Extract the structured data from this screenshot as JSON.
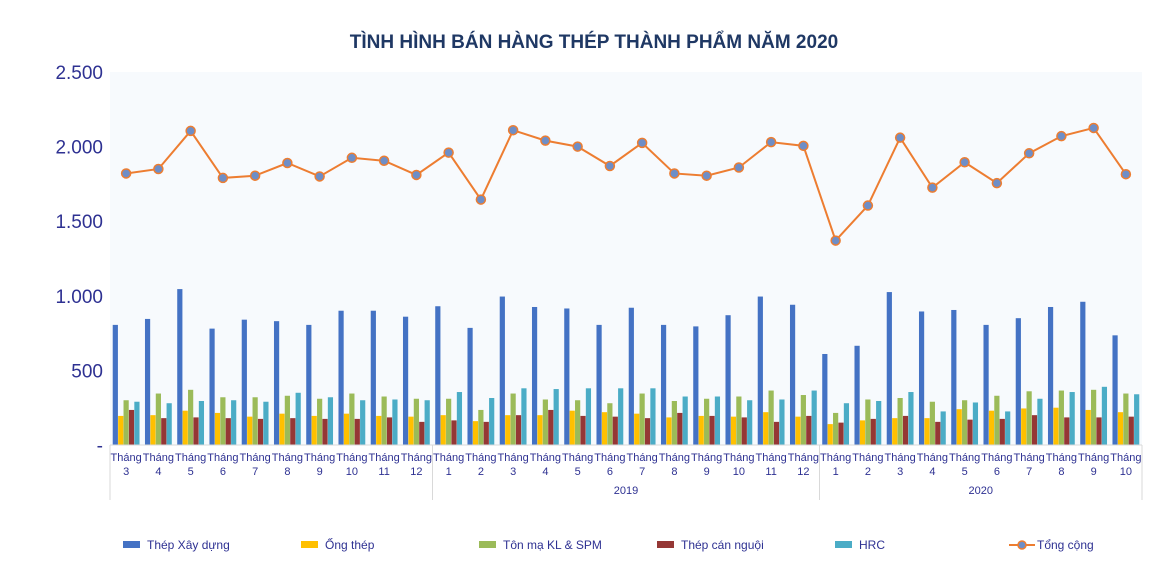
{
  "chart_data": {
    "type": "bar",
    "title": "TÌNH HÌNH BÁN HÀNG THÉP THÀNH PHẨM NĂM 2020",
    "ylim": [
      0,
      2500
    ],
    "yticks": [
      {
        "value": 0,
        "label": "-"
      },
      {
        "value": 500,
        "label": "500"
      },
      {
        "value": 1000,
        "label": "1.000"
      },
      {
        "value": 1500,
        "label": "1.500"
      },
      {
        "value": 2000,
        "label": "2.000"
      },
      {
        "value": 2500,
        "label": "2.500"
      }
    ],
    "grid": false,
    "legend_position": "bottom",
    "month_prefix": "Tháng",
    "categories": [
      "Tháng 3",
      "Tháng 4",
      "Tháng 5",
      "Tháng 6",
      "Tháng 7",
      "Tháng 8",
      "Tháng 9",
      "Tháng 10",
      "Tháng 11",
      "Tháng 12",
      "Tháng 1",
      "Tháng 2",
      "Tháng 3",
      "Tháng 4",
      "Tháng 5",
      "Tháng 6",
      "Tháng 7",
      "Tháng 8",
      "Tháng 9",
      "Tháng 10",
      "Tháng 11",
      "Tháng 12",
      "Tháng 1",
      "Tháng 2",
      "Tháng 3",
      "Tháng 4",
      "Tháng 5",
      "Tháng 6",
      "Tháng 7",
      "Tháng 8",
      "Tháng 9",
      "Tháng 10"
    ],
    "month_numbers": [
      "3",
      "4",
      "5",
      "6",
      "7",
      "8",
      "9",
      "10",
      "11",
      "12",
      "1",
      "2",
      "3",
      "4",
      "5",
      "6",
      "7",
      "8",
      "9",
      "10",
      "11",
      "12",
      "1",
      "2",
      "3",
      "4",
      "5",
      "6",
      "7",
      "8",
      "9",
      "10"
    ],
    "groups": [
      {
        "label": "",
        "start": 0,
        "end": 9
      },
      {
        "label": "2019",
        "start": 10,
        "end": 21
      },
      {
        "label": "2020",
        "start": 22,
        "end": 31
      }
    ],
    "series": [
      {
        "name": "Thép Xây dựng",
        "kind": "bar",
        "color": "#4472c4",
        "values": [
          805,
          845,
          1045,
          780,
          840,
          830,
          805,
          900,
          900,
          860,
          930,
          785,
          995,
          925,
          915,
          805,
          920,
          805,
          795,
          870,
          995,
          940,
          610,
          665,
          1025,
          895,
          905,
          805,
          850,
          925,
          960,
          735
        ]
      },
      {
        "name": "Ống thép",
        "kind": "bar",
        "color": "#ffc000",
        "values": [
          195,
          200,
          230,
          215,
          190,
          210,
          195,
          210,
          195,
          190,
          200,
          160,
          200,
          200,
          230,
          220,
          210,
          185,
          195,
          190,
          220,
          190,
          140,
          165,
          180,
          180,
          240,
          230,
          245,
          250,
          235,
          220
        ]
      },
      {
        "name": "Tôn mạ KL & SPM",
        "kind": "bar",
        "color": "#9bbb59",
        "values": [
          300,
          345,
          370,
          320,
          320,
          330,
          310,
          345,
          325,
          310,
          310,
          235,
          345,
          305,
          300,
          280,
          345,
          295,
          310,
          325,
          365,
          335,
          215,
          305,
          315,
          290,
          300,
          330,
          360,
          365,
          370,
          345
        ]
      },
      {
        "name": "Thép cán nguội",
        "kind": "bar",
        "color": "#953735",
        "values": [
          235,
          180,
          185,
          180,
          175,
          180,
          175,
          175,
          185,
          155,
          165,
          155,
          200,
          235,
          195,
          190,
          180,
          215,
          195,
          185,
          155,
          195,
          150,
          175,
          195,
          155,
          170,
          175,
          200,
          185,
          185,
          190
        ]
      },
      {
        "name": "HRC",
        "kind": "bar",
        "color": "#4bacc6",
        "values": [
          290,
          280,
          295,
          300,
          290,
          350,
          320,
          300,
          305,
          300,
          355,
          315,
          380,
          375,
          380,
          380,
          380,
          325,
          325,
          300,
          305,
          365,
          280,
          295,
          355,
          225,
          285,
          225,
          310,
          355,
          390,
          340
        ]
      },
      {
        "name": "Tổng cộng",
        "kind": "line",
        "color": "#ed7d31",
        "values": [
          1820,
          1850,
          2105,
          1790,
          1805,
          1890,
          1800,
          1925,
          1905,
          1810,
          1960,
          1645,
          2110,
          2040,
          2000,
          1870,
          2025,
          1820,
          1805,
          1860,
          2030,
          2005,
          1370,
          1605,
          2060,
          1725,
          1895,
          1755,
          1955,
          2070,
          2125,
          1815
        ]
      }
    ]
  }
}
